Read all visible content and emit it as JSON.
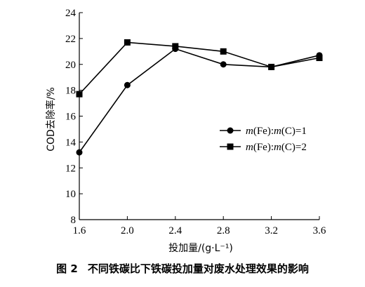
{
  "caption": {
    "figure_number": "图 2",
    "text": "不同铁碳比下铁碳投加量对废水处理效果的影响"
  },
  "chart_data": {
    "type": "line",
    "title": "",
    "xlabel": "投加量/(g·L⁻¹)",
    "ylabel": "COD去除率/%",
    "xlim": [
      1.6,
      3.6
    ],
    "ylim": [
      8,
      24
    ],
    "xticks": [
      "1.6",
      "2.0",
      "2.4",
      "2.8",
      "3.2",
      "3.6"
    ],
    "yticks": [
      "8",
      "10",
      "12",
      "14",
      "16",
      "18",
      "20",
      "22",
      "24"
    ],
    "grid": false,
    "legend_position": "center-right",
    "x": [
      1.6,
      2.0,
      2.4,
      2.8,
      3.2,
      3.6
    ],
    "series": [
      {
        "name": "m(Fe):m(C)=1",
        "marker": "circle",
        "values": [
          13.2,
          18.4,
          21.2,
          20.0,
          19.8,
          20.7
        ]
      },
      {
        "name": "m(Fe):m(C)=2",
        "marker": "square",
        "values": [
          17.7,
          21.7,
          21.4,
          21.0,
          19.8,
          20.5
        ]
      }
    ]
  }
}
